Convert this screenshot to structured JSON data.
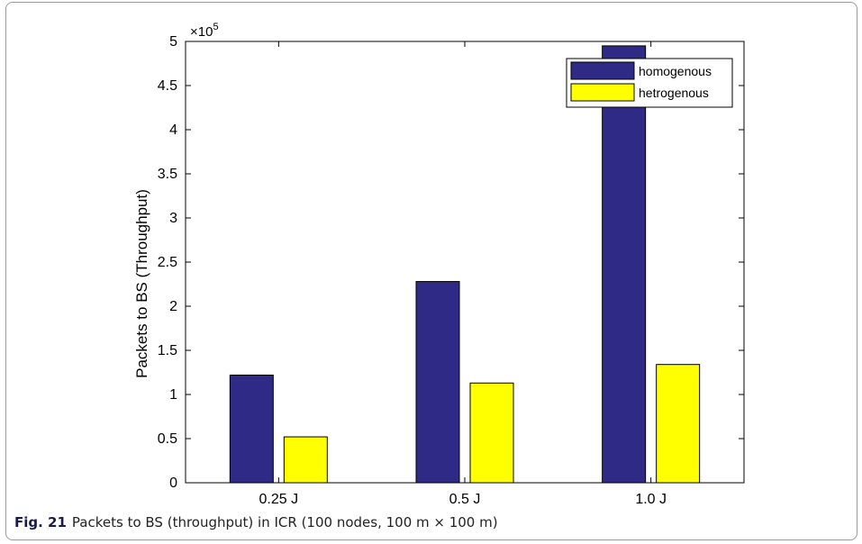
{
  "caption": {
    "label": "Fig. 21",
    "text": "Packets to BS (throughput) in ICR (100 nodes, 100 m × 100 m)"
  },
  "chart_data": {
    "type": "bar",
    "categories": [
      "0.25 J",
      "0.5 J",
      "1.0 J"
    ],
    "series": [
      {
        "name": "homogenous",
        "color": "#2e2a85",
        "values": [
          122000,
          228000,
          495000
        ]
      },
      {
        "name": "hetrogenous",
        "color": "#ffff00",
        "values": [
          52000,
          113000,
          134000
        ]
      }
    ],
    "ylabel": "Packets to BS (Throughput)",
    "xlabel": "",
    "ylim": [
      0,
      500000
    ],
    "yticks": [
      "0",
      "0.5",
      "1",
      "1.5",
      "2",
      "2.5",
      "3",
      "3.5",
      "4",
      "4.5",
      "5"
    ],
    "exponent_label": "×10",
    "exponent_power": "5",
    "legend_position": "top-right",
    "grid": false
  }
}
